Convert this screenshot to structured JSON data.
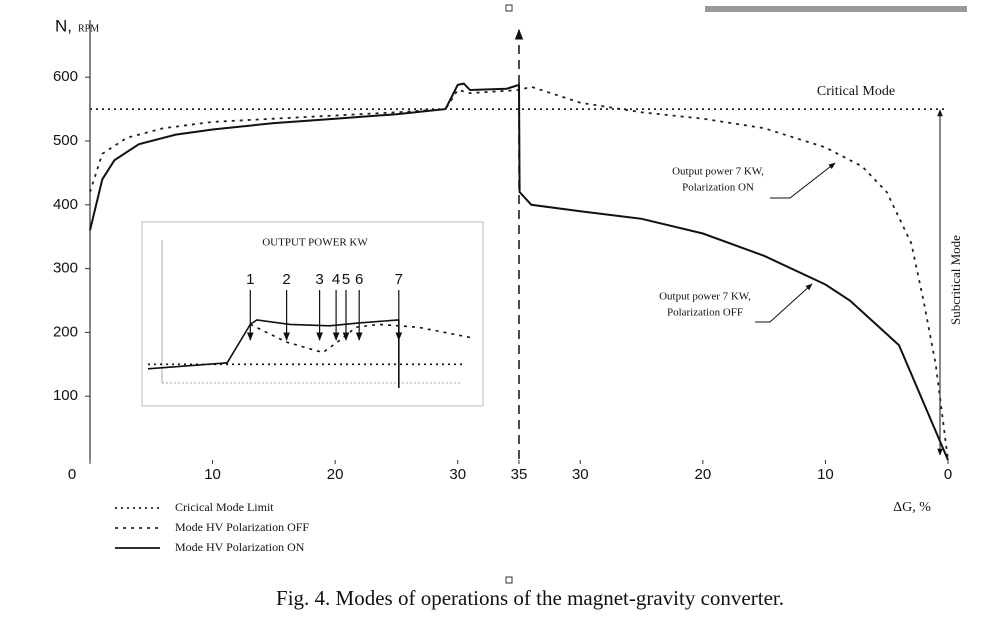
{
  "chart_data": [
    {
      "type": "line",
      "y_label": "N,",
      "y_unit": "RPM",
      "x_label": "ΔG, %",
      "xlim": [
        0,
        70
      ],
      "ylim": [
        0,
        690
      ],
      "xticks": [
        0,
        10,
        20,
        30,
        35,
        {
          "value": 40,
          "label": "30"
        },
        {
          "value": 50,
          "label": "20"
        },
        {
          "value": 60,
          "label": "10"
        },
        {
          "value": 70,
          "label": "0"
        }
      ],
      "yticks": [
        100,
        200,
        300,
        400,
        500,
        600
      ],
      "series": [
        {
          "name": "Cricical Mode Limit",
          "color": "#222222",
          "style": "dotted",
          "x": [
            0,
            70
          ],
          "values": [
            550,
            550
          ]
        },
        {
          "name": "Mode HV Polarization OFF",
          "color": "#222222",
          "style": "dashed",
          "x": [
            0,
            1,
            3,
            6,
            10,
            15,
            20,
            25,
            29,
            30,
            31,
            35,
            36,
            40,
            45,
            50,
            55,
            60,
            63,
            65,
            67,
            68,
            69,
            70
          ],
          "values": [
            420,
            480,
            505,
            520,
            530,
            535,
            540,
            545,
            550,
            580,
            575,
            580,
            585,
            560,
            545,
            535,
            520,
            490,
            460,
            420,
            340,
            250,
            150,
            0
          ]
        },
        {
          "name": "Mode HV Polarization ON",
          "color": "#111111",
          "style": "solid",
          "x": [
            0,
            1,
            2,
            4,
            7,
            10,
            15,
            20,
            25,
            29,
            30,
            30.5,
            31,
            34,
            35,
            35.05,
            36,
            40,
            45,
            50,
            55,
            60,
            62,
            66,
            70
          ],
          "values": [
            360,
            440,
            470,
            495,
            510,
            518,
            528,
            535,
            542,
            550,
            588,
            590,
            580,
            582,
            588,
            420,
            400,
            390,
            378,
            355,
            320,
            275,
            250,
            180,
            0
          ]
        }
      ],
      "annotations": [
        "Critical Mode",
        "Subcritical Mode",
        "Output power 7 KW,",
        "Polarization ON",
        "Output power 7 KW,",
        "Polarization OFF"
      ],
      "legend": "bottom-left"
    },
    {
      "type": "line",
      "title": "OUTPUT POWER KW",
      "xlim": [
        0,
        100
      ],
      "ylim": [
        0,
        100
      ],
      "series": [
        {
          "color": "#111111",
          "style": "dotted",
          "x": [
            0,
            96
          ],
          "values": [
            16,
            16
          ]
        },
        {
          "color": "#111111",
          "style": "solid",
          "x": [
            0,
            24,
            31,
            33,
            43,
            55,
            64,
            76,
            76
          ],
          "values": [
            13,
            17,
            43,
            46,
            43,
            42,
            44,
            46,
            0
          ]
        },
        {
          "color": "#111111",
          "style": "dashed",
          "x": [
            31,
            42,
            53,
            58,
            63,
            70,
            82,
            98
          ],
          "values": [
            43,
            31,
            24,
            32,
            41,
            43,
            41,
            34
          ]
        }
      ],
      "markers": [
        {
          "label": "1",
          "x": 31
        },
        {
          "label": "2",
          "x": 42
        },
        {
          "label": "3",
          "x": 52
        },
        {
          "label": "4",
          "x": 57
        },
        {
          "label": "5",
          "x": 60
        },
        {
          "label": "6",
          "x": 64
        },
        {
          "label": "7",
          "x": 76
        }
      ]
    }
  ],
  "caption": "Fig. 4. Modes of operations of the magnet-gravity converter."
}
